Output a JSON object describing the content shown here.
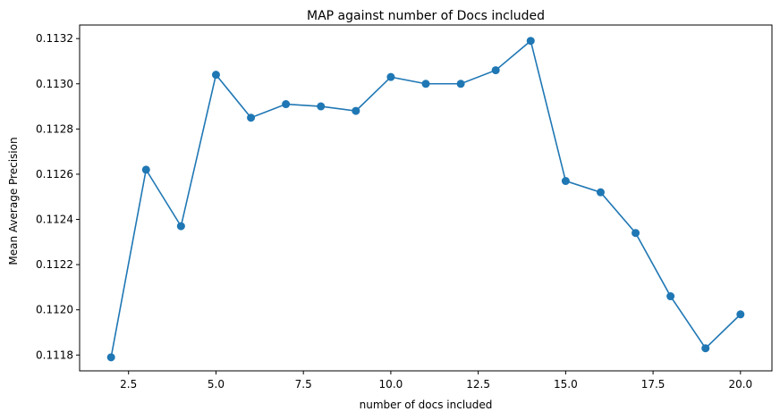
{
  "chart_data": {
    "type": "line",
    "title": "MAP against number of Docs included",
    "xlabel": "number of docs included",
    "ylabel": "Mean Average Precision",
    "xlim": [
      1.1,
      20.9
    ],
    "ylim": [
      0.11173,
      0.11326
    ],
    "xticks": [
      2.5,
      5.0,
      7.5,
      10.0,
      12.5,
      15.0,
      17.5,
      20.0
    ],
    "xtick_labels": [
      "2.5",
      "5.0",
      "7.5",
      "10.0",
      "12.5",
      "15.0",
      "17.5",
      "20.0"
    ],
    "yticks": [
      0.1118,
      0.112,
      0.1122,
      0.1124,
      0.1126,
      0.1128,
      0.113,
      0.1132
    ],
    "ytick_labels": [
      "0.1118",
      "0.1120",
      "0.1122",
      "0.1124",
      "0.1126",
      "0.1128",
      "0.1130",
      "0.1132"
    ],
    "x": [
      2,
      3,
      4,
      5,
      6,
      7,
      8,
      9,
      10,
      11,
      12,
      13,
      14,
      15,
      16,
      17,
      18,
      19,
      20
    ],
    "series": [
      {
        "values": [
          0.11179,
          0.11262,
          0.11237,
          0.11304,
          0.11285,
          0.11291,
          0.1129,
          0.11288,
          0.11303,
          0.113,
          0.113,
          0.11306,
          0.11319,
          0.11257,
          0.11252,
          0.11234,
          0.11206,
          0.11183,
          0.11198
        ],
        "color": "#1f77b4",
        "marker": "circle"
      }
    ],
    "grid": false,
    "legend": false
  }
}
